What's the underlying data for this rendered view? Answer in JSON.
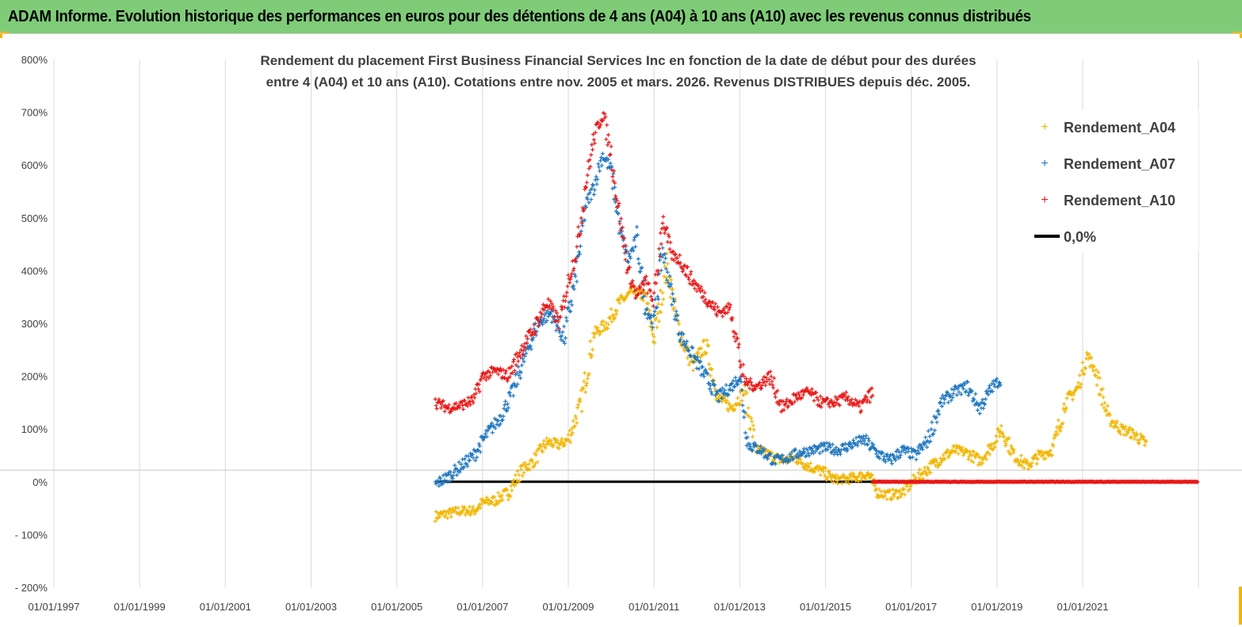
{
  "header": {
    "title": "ADAM Informe. Evolution historique des performances en euros pour des détentions de 4 ans (A04) à 10 ans (A10) avec les revenus connus distribués"
  },
  "colors": {
    "header_bg": "#7fcc78",
    "accent_corner": "#f2b600",
    "A04": "#f2b600",
    "A07": "#1f77c0",
    "A10": "#e81919",
    "zero": "#000000",
    "grid": "#d9d9d9"
  },
  "chart_data": {
    "type": "scatter",
    "title_lines": [
      "Rendement du placement First Business Financial Services  Inc en fonction de la date de début pour des durées",
      "entre 4 (A04) et 10 ans (A10).  Cotations entre nov. 2005 et mars. 2026. Revenus DISTRIBUES depuis déc. 2005."
    ],
    "xlabel": "",
    "ylabel": "",
    "x_ticks": [
      "01/01/1997",
      "01/01/1999",
      "01/01/2001",
      "01/01/2003",
      "01/01/2005",
      "01/01/2007",
      "01/01/2009",
      "01/01/2011",
      "01/01/2013",
      "01/01/2015",
      "01/01/2017",
      "01/01/2019",
      "01/01/2021"
    ],
    "xlim": [
      1997.0,
      2023.7
    ],
    "y_ticks": [
      "800%",
      "700%",
      "600%",
      "500%",
      "400%",
      "300%",
      "200%",
      "100%",
      "0%",
      "- 100%",
      "- 200%"
    ],
    "ylim": [
      -200,
      800
    ],
    "grid": "vertical",
    "legend_position": "right",
    "series": [
      {
        "name": "Rendement_A04",
        "marker": "+",
        "x": [
          2005.9,
          2006.2,
          2006.5,
          2006.8,
          2007.0,
          2007.3,
          2007.6,
          2007.9,
          2008.2,
          2008.5,
          2008.8,
          2009.0,
          2009.3,
          2009.6,
          2009.9,
          2010.2,
          2010.5,
          2010.8,
          2011.0,
          2011.3,
          2011.6,
          2011.9,
          2012.2,
          2012.5,
          2012.8,
          2013.1,
          2013.4,
          2013.7,
          2014.0,
          2014.3,
          2014.6,
          2014.9,
          2015.2,
          2015.5,
          2015.8,
          2016.0,
          2016.2,
          2016.5,
          2016.8,
          2017.1,
          2017.4,
          2017.7,
          2018.0,
          2018.3,
          2018.6,
          2018.9,
          2019.1,
          2019.4,
          2019.7,
          2020.0,
          2020.3,
          2020.6,
          2020.9,
          2021.1,
          2021.3,
          2021.6,
          2021.9,
          2022.2,
          2022.5
        ],
        "y": [
          -65,
          -60,
          -55,
          -55,
          -40,
          -35,
          -20,
          20,
          40,
          75,
          70,
          80,
          150,
          280,
          300,
          340,
          360,
          350,
          270,
          410,
          280,
          220,
          260,
          160,
          140,
          170,
          60,
          50,
          40,
          45,
          30,
          20,
          5,
          5,
          10,
          15,
          -20,
          -25,
          -20,
          5,
          25,
          45,
          60,
          55,
          40,
          70,
          100,
          50,
          30,
          50,
          60,
          150,
          180,
          240,
          210,
          120,
          100,
          90,
          70
        ]
      },
      {
        "name": "Rendement_A07",
        "marker": "+",
        "x": [
          2005.9,
          2006.2,
          2006.5,
          2006.8,
          2007.1,
          2007.4,
          2007.7,
          2008.0,
          2008.3,
          2008.6,
          2008.9,
          2009.2,
          2009.4,
          2009.6,
          2009.8,
          2010.0,
          2010.2,
          2010.4,
          2010.6,
          2010.8,
          2011.0,
          2011.2,
          2011.4,
          2011.6,
          2011.9,
          2012.2,
          2012.5,
          2012.8,
          2013.0,
          2013.2,
          2013.5,
          2013.8,
          2014.1,
          2014.4,
          2014.7,
          2015.0,
          2015.3,
          2015.6,
          2015.9,
          2016.2,
          2016.5,
          2016.8,
          2017.1,
          2017.4,
          2017.7,
          2018.0,
          2018.3,
          2018.6,
          2018.9,
          2019.1
        ],
        "y": [
          -5,
          10,
          30,
          50,
          90,
          120,
          170,
          240,
          300,
          320,
          270,
          400,
          520,
          560,
          620,
          590,
          480,
          420,
          460,
          330,
          300,
          440,
          360,
          280,
          240,
          200,
          160,
          180,
          200,
          70,
          60,
          40,
          45,
          55,
          60,
          65,
          60,
          70,
          80,
          55,
          40,
          60,
          50,
          80,
          150,
          170,
          180,
          140,
          180,
          195
        ]
      },
      {
        "name": "Rendement_A10",
        "marker": "+",
        "x": [
          2005.9,
          2006.2,
          2006.5,
          2006.8,
          2007.0,
          2007.3,
          2007.6,
          2007.9,
          2008.2,
          2008.5,
          2008.8,
          2009.0,
          2009.2,
          2009.4,
          2009.6,
          2009.8,
          2010.0,
          2010.2,
          2010.4,
          2010.6,
          2010.8,
          2011.0,
          2011.2,
          2011.4,
          2011.6,
          2011.9,
          2012.2,
          2012.5,
          2012.8,
          2013.1,
          2013.4,
          2013.7,
          2014.0,
          2014.3,
          2014.6,
          2014.9,
          2015.2,
          2015.5,
          2015.8,
          2016.1,
          2016.1,
          2017.0,
          2018.0,
          2019.0,
          2020.0,
          2021.0,
          2022.0,
          2023.0,
          2023.7
        ],
        "y": [
          150,
          140,
          145,
          155,
          200,
          210,
          200,
          250,
          290,
          340,
          300,
          380,
          440,
          560,
          650,
          700,
          620,
          500,
          400,
          350,
          380,
          340,
          500,
          430,
          420,
          380,
          350,
          320,
          330,
          190,
          180,
          200,
          140,
          160,
          170,
          150,
          150,
          160,
          140,
          170,
          0,
          0,
          0,
          0,
          0,
          0,
          0,
          0,
          0
        ]
      },
      {
        "name": "0,0%",
        "x": [
          2005.9,
          2023.7
        ],
        "y": [
          0,
          0
        ]
      }
    ]
  }
}
